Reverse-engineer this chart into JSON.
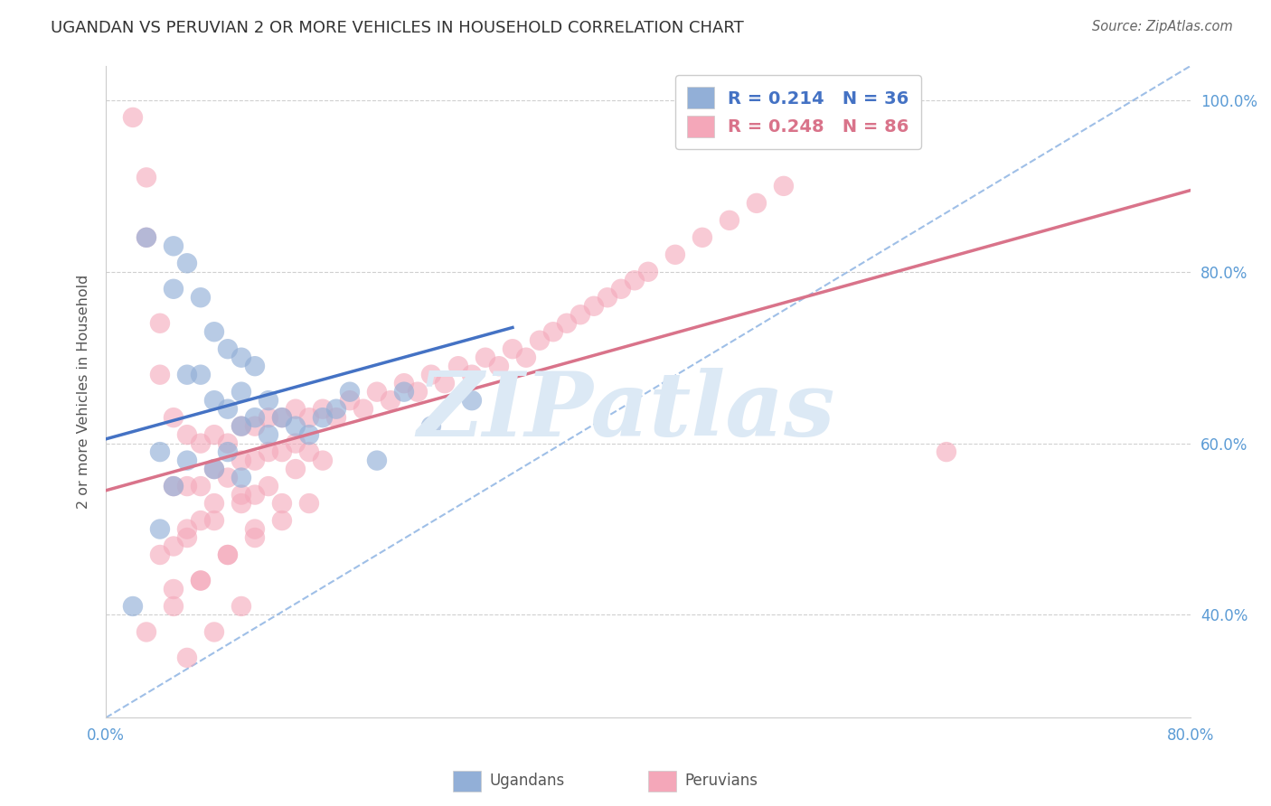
{
  "title": "UGANDAN VS PERUVIAN 2 OR MORE VEHICLES IN HOUSEHOLD CORRELATION CHART",
  "source_text": "Source: ZipAtlas.com",
  "ylabel": "2 or more Vehicles in Household",
  "xlim": [
    0.0,
    0.8
  ],
  "ylim": [
    0.28,
    1.04
  ],
  "x_ticks": [
    0.0,
    0.8
  ],
  "x_tick_labels": [
    "0.0%",
    "80.0%"
  ],
  "y_ticks": [
    0.4,
    0.6,
    0.8,
    1.0
  ],
  "y_tick_labels": [
    "40.0%",
    "60.0%",
    "80.0%",
    "100.0%"
  ],
  "ugandan_R": 0.214,
  "ugandan_N": 36,
  "peruvian_R": 0.248,
  "peruvian_N": 86,
  "ugandan_color": "#92afd7",
  "peruvian_color": "#f4a7b9",
  "ugandan_line_color": "#4472c4",
  "peruvian_line_color": "#d9738a",
  "ref_line_color": "#8eb4e3",
  "watermark_text": "ZIPatlas",
  "watermark_color": "#dce9f5",
  "background_color": "#ffffff",
  "ugandan_x": [
    0.02,
    0.03,
    0.04,
    0.05,
    0.05,
    0.06,
    0.06,
    0.07,
    0.07,
    0.08,
    0.08,
    0.09,
    0.09,
    0.1,
    0.1,
    0.1,
    0.11,
    0.11,
    0.12,
    0.12,
    0.13,
    0.14,
    0.15,
    0.16,
    0.17,
    0.18,
    0.2,
    0.22,
    0.24,
    0.27,
    0.04,
    0.05,
    0.06,
    0.08,
    0.09,
    0.1
  ],
  "ugandan_y": [
    0.41,
    0.84,
    0.5,
    0.83,
    0.78,
    0.81,
    0.68,
    0.77,
    0.68,
    0.73,
    0.65,
    0.71,
    0.64,
    0.7,
    0.66,
    0.62,
    0.69,
    0.63,
    0.65,
    0.61,
    0.63,
    0.62,
    0.61,
    0.63,
    0.64,
    0.66,
    0.58,
    0.66,
    0.62,
    0.65,
    0.59,
    0.55,
    0.58,
    0.57,
    0.59,
    0.56
  ],
  "peruvian_x": [
    0.02,
    0.03,
    0.03,
    0.04,
    0.04,
    0.05,
    0.05,
    0.05,
    0.06,
    0.06,
    0.06,
    0.07,
    0.07,
    0.07,
    0.08,
    0.08,
    0.08,
    0.09,
    0.09,
    0.1,
    0.1,
    0.1,
    0.11,
    0.11,
    0.11,
    0.12,
    0.12,
    0.13,
    0.13,
    0.14,
    0.14,
    0.15,
    0.15,
    0.16,
    0.17,
    0.18,
    0.19,
    0.2,
    0.21,
    0.22,
    0.23,
    0.24,
    0.25,
    0.26,
    0.27,
    0.28,
    0.29,
    0.3,
    0.31,
    0.32,
    0.33,
    0.34,
    0.35,
    0.36,
    0.37,
    0.38,
    0.39,
    0.4,
    0.42,
    0.44,
    0.46,
    0.48,
    0.5,
    0.04,
    0.05,
    0.06,
    0.07,
    0.08,
    0.09,
    0.1,
    0.11,
    0.12,
    0.13,
    0.14,
    0.15,
    0.16,
    0.03,
    0.05,
    0.07,
    0.09,
    0.11,
    0.13,
    0.06,
    0.08,
    0.1,
    0.62
  ],
  "peruvian_y": [
    0.98,
    0.91,
    0.84,
    0.74,
    0.68,
    0.63,
    0.55,
    0.48,
    0.61,
    0.55,
    0.5,
    0.6,
    0.55,
    0.51,
    0.61,
    0.57,
    0.53,
    0.6,
    0.56,
    0.62,
    0.58,
    0.54,
    0.62,
    0.58,
    0.54,
    0.63,
    0.59,
    0.63,
    0.59,
    0.64,
    0.6,
    0.63,
    0.59,
    0.64,
    0.63,
    0.65,
    0.64,
    0.66,
    0.65,
    0.67,
    0.66,
    0.68,
    0.67,
    0.69,
    0.68,
    0.7,
    0.69,
    0.71,
    0.7,
    0.72,
    0.73,
    0.74,
    0.75,
    0.76,
    0.77,
    0.78,
    0.79,
    0.8,
    0.82,
    0.84,
    0.86,
    0.88,
    0.9,
    0.47,
    0.43,
    0.49,
    0.44,
    0.51,
    0.47,
    0.53,
    0.49,
    0.55,
    0.51,
    0.57,
    0.53,
    0.58,
    0.38,
    0.41,
    0.44,
    0.47,
    0.5,
    0.53,
    0.35,
    0.38,
    0.41,
    0.59
  ],
  "ugandan_line_x0": 0.0,
  "ugandan_line_y0": 0.605,
  "ugandan_line_x1": 0.3,
  "ugandan_line_y1": 0.735,
  "peruvian_line_x0": 0.0,
  "peruvian_line_y0": 0.545,
  "peruvian_line_x1": 0.8,
  "peruvian_line_y1": 0.895,
  "ref_line_x0": 0.0,
  "ref_line_y0": 0.28,
  "ref_line_x1": 0.8,
  "ref_line_y1": 1.04
}
